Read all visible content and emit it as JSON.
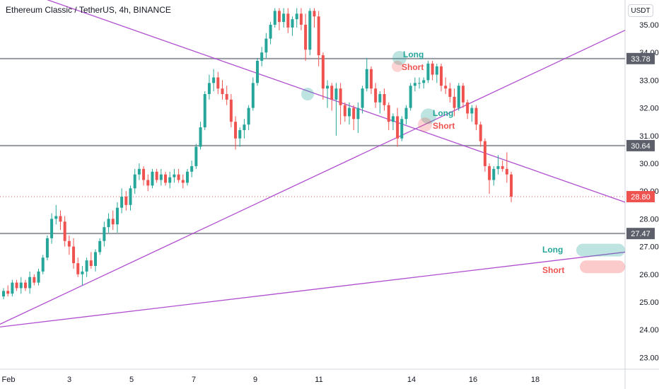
{
  "header": {
    "title": "Ethereum Classic / TetherUS, 4h, BINANCE",
    "currency": "USDT"
  },
  "annotations": {
    "long_label": "Long",
    "short_label": "Short"
  },
  "colors": {
    "up": "#26a69a",
    "down": "#ef5350",
    "trendline": "#b04fcf",
    "hline": "#9598a1",
    "axis_text": "#131722"
  },
  "chart_data": {
    "type": "candlestick",
    "title": "Ethereum Classic / TetherUS, 4h, BINANCE",
    "y_axis": {
      "unit": "USDT",
      "range": [
        22.6,
        35.5
      ],
      "ticks": [
        23.0,
        24.0,
        25.0,
        26.0,
        27.0,
        28.0,
        29.0,
        30.0,
        31.0,
        32.0,
        33.0,
        34.0,
        35.0
      ]
    },
    "x_axis": {
      "ticks": [
        "Feb",
        "3",
        "5",
        "7",
        "9",
        "11",
        "14",
        "16",
        "18"
      ]
    },
    "horizontal_levels": [
      "33.78",
      "30.64",
      "27.47"
    ],
    "last_price": "28.80",
    "grid": false,
    "candles": [
      [
        25.2,
        25.5,
        25.1,
        25.4
      ],
      [
        25.4,
        25.6,
        25.2,
        25.3
      ],
      [
        25.3,
        25.8,
        25.2,
        25.7
      ],
      [
        25.7,
        25.8,
        25.4,
        25.5
      ],
      [
        25.5,
        25.9,
        25.3,
        25.7
      ],
      [
        25.7,
        25.8,
        25.4,
        25.5
      ],
      [
        25.5,
        26.1,
        25.3,
        25.9
      ],
      [
        25.9,
        26.0,
        25.6,
        25.7
      ],
      [
        25.7,
        26.2,
        25.6,
        26.1
      ],
      [
        26.1,
        26.7,
        26.0,
        26.6
      ],
      [
        26.6,
        27.4,
        26.5,
        27.3
      ],
      [
        27.3,
        28.2,
        27.1,
        28.0
      ],
      [
        28.0,
        28.5,
        27.8,
        28.1
      ],
      [
        28.1,
        28.3,
        27.6,
        27.9
      ],
      [
        27.9,
        28.1,
        27.0,
        27.2
      ],
      [
        27.2,
        27.4,
        26.7,
        27.0
      ],
      [
        27.0,
        27.3,
        26.2,
        26.4
      ],
      [
        26.4,
        26.6,
        25.9,
        26.0
      ],
      [
        26.0,
        26.3,
        25.6,
        26.1
      ],
      [
        26.1,
        26.6,
        25.9,
        26.5
      ],
      [
        26.5,
        26.8,
        26.2,
        26.3
      ],
      [
        26.3,
        26.9,
        26.1,
        26.8
      ],
      [
        26.8,
        27.3,
        26.7,
        27.2
      ],
      [
        27.2,
        27.9,
        27.0,
        27.7
      ],
      [
        27.7,
        28.2,
        27.5,
        28.0
      ],
      [
        28.0,
        28.3,
        27.6,
        27.8
      ],
      [
        27.8,
        28.6,
        27.5,
        28.4
      ],
      [
        28.4,
        29.1,
        28.2,
        28.8
      ],
      [
        28.8,
        29.0,
        28.3,
        28.5
      ],
      [
        28.5,
        29.2,
        28.3,
        29.1
      ],
      [
        29.1,
        29.8,
        28.9,
        29.6
      ],
      [
        29.6,
        30.0,
        29.4,
        29.8
      ],
      [
        29.8,
        29.9,
        29.2,
        29.4
      ],
      [
        29.4,
        29.6,
        29.0,
        29.2
      ],
      [
        29.2,
        29.8,
        29.1,
        29.7
      ],
      [
        29.7,
        29.8,
        29.3,
        29.4
      ],
      [
        29.4,
        29.8,
        29.2,
        29.6
      ],
      [
        29.6,
        29.7,
        29.2,
        29.3
      ],
      [
        29.3,
        29.7,
        29.1,
        29.5
      ],
      [
        29.5,
        29.8,
        29.3,
        29.6
      ],
      [
        29.6,
        29.8,
        29.3,
        29.4
      ],
      [
        29.4,
        29.6,
        29.1,
        29.3
      ],
      [
        29.3,
        29.8,
        29.2,
        29.7
      ],
      [
        29.7,
        30.1,
        29.5,
        29.9
      ],
      [
        29.9,
        30.7,
        29.8,
        30.6
      ],
      [
        30.6,
        31.5,
        30.5,
        31.3
      ],
      [
        31.3,
        32.6,
        31.2,
        32.5
      ],
      [
        32.5,
        33.2,
        32.3,
        32.9
      ],
      [
        32.9,
        33.4,
        32.6,
        33.1
      ],
      [
        33.1,
        33.3,
        32.5,
        32.7
      ],
      [
        32.7,
        33.0,
        32.3,
        32.5
      ],
      [
        32.5,
        32.8,
        32.1,
        32.3
      ],
      [
        32.3,
        32.5,
        31.3,
        31.5
      ],
      [
        31.5,
        31.7,
        30.5,
        30.9
      ],
      [
        30.9,
        31.3,
        30.6,
        31.2
      ],
      [
        31.2,
        31.6,
        30.9,
        31.4
      ],
      [
        31.4,
        32.1,
        31.2,
        32.0
      ],
      [
        32.0,
        33.1,
        31.9,
        32.9
      ],
      [
        32.9,
        33.8,
        32.8,
        33.7
      ],
      [
        33.7,
        34.2,
        33.5,
        34.0
      ],
      [
        34.0,
        34.7,
        33.8,
        34.5
      ],
      [
        34.5,
        35.1,
        34.3,
        35.0
      ],
      [
        35.0,
        35.6,
        34.9,
        35.5
      ],
      [
        35.5,
        35.6,
        34.8,
        35.1
      ],
      [
        35.1,
        35.6,
        34.9,
        35.4
      ],
      [
        35.4,
        35.6,
        34.7,
        34.9
      ],
      [
        34.9,
        35.3,
        34.6,
        35.2
      ],
      [
        35.2,
        35.6,
        34.9,
        35.4
      ],
      [
        35.4,
        35.6,
        34.8,
        35.0
      ],
      [
        35.0,
        35.4,
        33.7,
        34.1
      ],
      [
        34.1,
        35.6,
        33.9,
        35.5
      ],
      [
        35.5,
        35.6,
        34.9,
        35.3
      ],
      [
        35.3,
        35.5,
        33.5,
        33.9
      ],
      [
        33.9,
        34.0,
        32.3,
        32.7
      ],
      [
        32.7,
        33.0,
        32.0,
        32.8
      ],
      [
        32.8,
        32.9,
        31.9,
        32.3
      ],
      [
        32.3,
        32.9,
        31.0,
        32.7
      ],
      [
        32.7,
        32.9,
        31.4,
        32.1
      ],
      [
        32.1,
        32.2,
        31.5,
        31.7
      ],
      [
        31.7,
        32.2,
        31.4,
        32.0
      ],
      [
        32.0,
        32.1,
        31.2,
        31.6
      ],
      [
        31.6,
        32.2,
        31.1,
        32.0
      ],
      [
        32.0,
        32.8,
        31.8,
        32.7
      ],
      [
        32.7,
        33.8,
        32.6,
        33.4
      ],
      [
        33.4,
        33.5,
        32.5,
        32.7
      ],
      [
        32.7,
        32.9,
        32.0,
        32.2
      ],
      [
        32.2,
        32.6,
        31.8,
        32.5
      ],
      [
        32.5,
        32.7,
        31.9,
        32.1
      ],
      [
        32.1,
        32.2,
        31.2,
        31.5
      ],
      [
        31.5,
        31.8,
        31.2,
        31.7
      ],
      [
        31.7,
        32.0,
        30.6,
        30.9
      ],
      [
        30.9,
        31.7,
        30.8,
        31.6
      ],
      [
        31.6,
        32.1,
        31.4,
        32.0
      ],
      [
        32.0,
        32.9,
        31.9,
        32.8
      ],
      [
        32.8,
        33.1,
        32.6,
        32.9
      ],
      [
        32.9,
        33.1,
        32.7,
        32.9
      ],
      [
        32.9,
        33.1,
        32.7,
        33.0
      ],
      [
        33.0,
        33.7,
        32.9,
        33.6
      ],
      [
        33.6,
        33.7,
        33.0,
        33.2
      ],
      [
        33.2,
        33.6,
        32.9,
        33.5
      ],
      [
        33.5,
        33.6,
        32.6,
        32.8
      ],
      [
        32.8,
        33.1,
        32.5,
        32.7
      ],
      [
        32.7,
        32.9,
        32.2,
        32.4
      ],
      [
        32.4,
        32.7,
        31.7,
        32.0
      ],
      [
        32.0,
        32.9,
        31.9,
        32.8
      ],
      [
        32.8,
        32.9,
        32.0,
        32.2
      ],
      [
        32.2,
        32.3,
        31.6,
        31.8
      ],
      [
        31.8,
        32.1,
        31.5,
        32.0
      ],
      [
        32.0,
        32.1,
        31.2,
        31.4
      ],
      [
        31.4,
        31.5,
        30.6,
        30.8
      ],
      [
        30.8,
        30.9,
        29.7,
        29.9
      ],
      [
        29.9,
        30.0,
        28.9,
        29.4
      ],
      [
        29.4,
        29.9,
        29.2,
        29.8
      ],
      [
        29.8,
        30.3,
        29.6,
        29.9
      ],
      [
        29.9,
        30.1,
        29.7,
        29.8
      ],
      [
        29.8,
        30.4,
        29.3,
        29.6
      ],
      [
        29.6,
        29.7,
        28.6,
        28.8
      ]
    ]
  }
}
